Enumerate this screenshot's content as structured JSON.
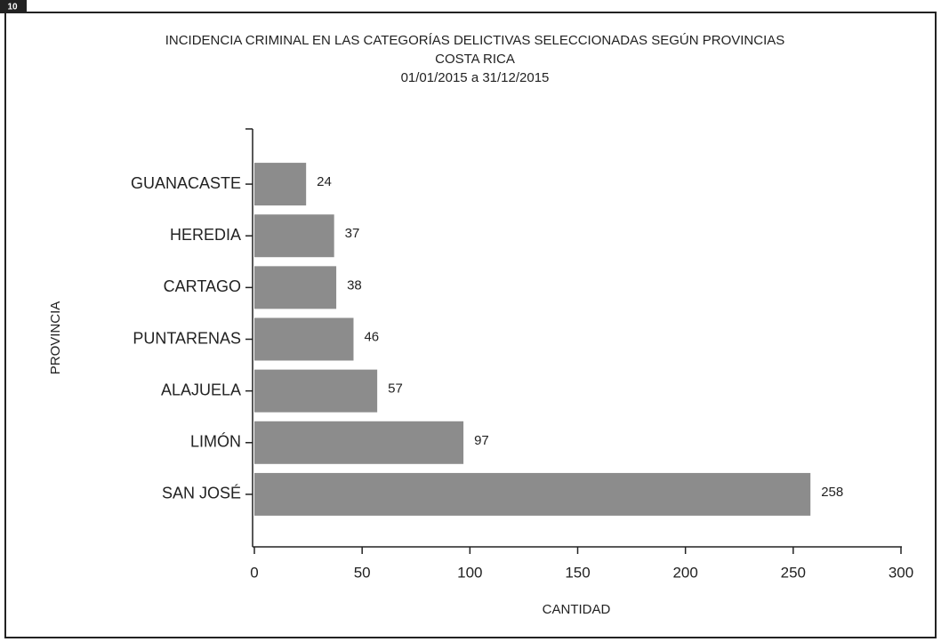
{
  "page_label": "10",
  "chart_data": {
    "type": "hbar",
    "title": "INCIDENCIA CRIMINAL EN LAS CATEGORÍAS DELICTIVAS SELECCIONADAS SEGÚN PROVINCIAS",
    "subtitle": "COSTA RICA",
    "date_range": "01/01/2015 a 31/12/2015",
    "xlabel": "CANTIDAD",
    "ylabel": "PROVINCIA",
    "categories": [
      "GUANACASTE",
      "HEREDIA",
      "CARTAGO",
      "PUNTARENAS",
      "ALAJUELA",
      "LIMÓN",
      "SAN JOSÉ"
    ],
    "values": [
      24,
      37,
      38,
      46,
      57,
      97,
      258
    ],
    "color": "#8c8c8c",
    "xlim": [
      0,
      300
    ],
    "xticks": [
      0,
      50,
      100,
      150,
      200,
      250,
      300
    ],
    "grid": false
  }
}
